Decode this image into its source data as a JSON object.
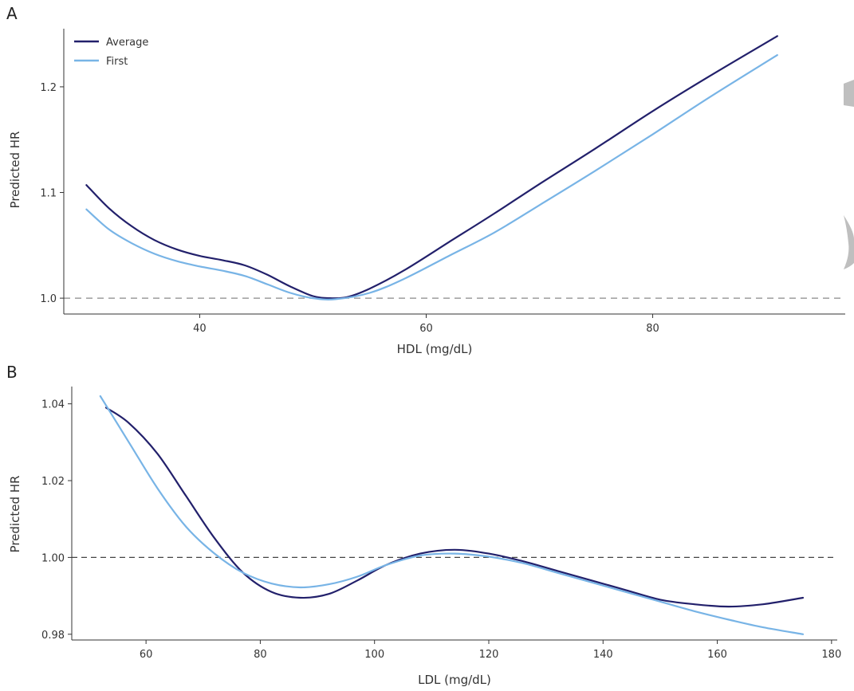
{
  "colors": {
    "average": "#22206b",
    "first": "#78b4e6",
    "reference_line_A": "#8a8a8a",
    "reference_line_B": "#444444"
  },
  "chart_data": [
    {
      "panel": "A",
      "type": "line",
      "xlabel": "HDL (mg/dL)",
      "ylabel": "Predicted HR",
      "xlim": [
        28,
        97
      ],
      "ylim": [
        0.985,
        1.255
      ],
      "xticks": [
        40,
        60,
        80
      ],
      "yticks": [
        1.0,
        1.1,
        1.2
      ],
      "ytick_labels": [
        "1.0",
        "1.1",
        "1.2"
      ],
      "reference_line": {
        "y": 1.0,
        "style": "dashed"
      },
      "legend": {
        "position": "top-left",
        "entries": [
          "Average",
          "First"
        ]
      },
      "grid": false,
      "series": [
        {
          "name": "Average",
          "color_key": "average",
          "points": [
            [
              30,
              1.107
            ],
            [
              32,
              1.085
            ],
            [
              34,
              1.068
            ],
            [
              36,
              1.055
            ],
            [
              38,
              1.046
            ],
            [
              40,
              1.04
            ],
            [
              42,
              1.036
            ],
            [
              44,
              1.031
            ],
            [
              46,
              1.022
            ],
            [
              48,
              1.011
            ],
            [
              50,
              1.002
            ],
            [
              51.5,
              1.0
            ],
            [
              53,
              1.001
            ],
            [
              55,
              1.009
            ],
            [
              58,
              1.026
            ],
            [
              62,
              1.053
            ],
            [
              66,
              1.08
            ],
            [
              70,
              1.108
            ],
            [
              75,
              1.142
            ],
            [
              80,
              1.177
            ],
            [
              85,
              1.21
            ],
            [
              91,
              1.248
            ]
          ]
        },
        {
          "name": "First",
          "color_key": "first",
          "points": [
            [
              30,
              1.084
            ],
            [
              32,
              1.065
            ],
            [
              34,
              1.052
            ],
            [
              36,
              1.042
            ],
            [
              38,
              1.035
            ],
            [
              40,
              1.03
            ],
            [
              42,
              1.026
            ],
            [
              44,
              1.021
            ],
            [
              46,
              1.013
            ],
            [
              48,
              1.005
            ],
            [
              50,
              1.0
            ],
            [
              52,
              0.999
            ],
            [
              55,
              1.005
            ],
            [
              58,
              1.018
            ],
            [
              62,
              1.04
            ],
            [
              66,
              1.062
            ],
            [
              70,
              1.088
            ],
            [
              75,
              1.121
            ],
            [
              80,
              1.155
            ],
            [
              85,
              1.19
            ],
            [
              91,
              1.23
            ]
          ]
        }
      ]
    },
    {
      "panel": "B",
      "type": "line",
      "xlabel": "LDL (mg/dL)",
      "ylabel": "Predicted HR",
      "xlim": [
        47,
        181
      ],
      "ylim": [
        0.9785,
        1.0445
      ],
      "xticks": [
        60,
        80,
        100,
        120,
        140,
        160,
        180
      ],
      "yticks": [
        0.98,
        1.0,
        1.02,
        1.04
      ],
      "ytick_labels": [
        "0.98",
        "1.00",
        "1.02",
        "1.04"
      ],
      "reference_line": {
        "y": 1.0,
        "style": "dashed"
      },
      "grid": false,
      "series": [
        {
          "name": "Average",
          "color_key": "average",
          "points": [
            [
              53,
              1.039
            ],
            [
              57,
              1.035
            ],
            [
              62,
              1.027
            ],
            [
              67,
              1.016
            ],
            [
              72,
              1.005
            ],
            [
              77,
              0.996
            ],
            [
              82,
              0.991
            ],
            [
              87,
              0.9895
            ],
            [
              92,
              0.9905
            ],
            [
              97,
              0.994
            ],
            [
              102,
              0.998
            ],
            [
              108,
              1.001
            ],
            [
              114,
              1.002
            ],
            [
              120,
              1.001
            ],
            [
              126,
              0.999
            ],
            [
              132,
              0.9965
            ],
            [
              138,
              0.994
            ],
            [
              144,
              0.9915
            ],
            [
              150,
              0.989
            ],
            [
              156,
              0.9878
            ],
            [
              162,
              0.9872
            ],
            [
              168,
              0.9878
            ],
            [
              175,
              0.9895
            ]
          ]
        },
        {
          "name": "First",
          "color_key": "first",
          "points": [
            [
              52,
              1.042
            ],
            [
              57,
              1.03
            ],
            [
              62,
              1.018
            ],
            [
              67,
              1.008
            ],
            [
              72,
              1.001
            ],
            [
              77,
              0.996
            ],
            [
              82,
              0.9932
            ],
            [
              87,
              0.9922
            ],
            [
              92,
              0.993
            ],
            [
              97,
              0.995
            ],
            [
              102,
              0.998
            ],
            [
              108,
              1.0005
            ],
            [
              114,
              1.001
            ],
            [
              120,
              1.0002
            ],
            [
              126,
              0.9985
            ],
            [
              132,
              0.996
            ],
            [
              138,
              0.9935
            ],
            [
              144,
              0.991
            ],
            [
              150,
              0.9885
            ],
            [
              156,
              0.986
            ],
            [
              162,
              0.9838
            ],
            [
              168,
              0.9818
            ],
            [
              175,
              0.98
            ]
          ]
        }
      ]
    }
  ]
}
